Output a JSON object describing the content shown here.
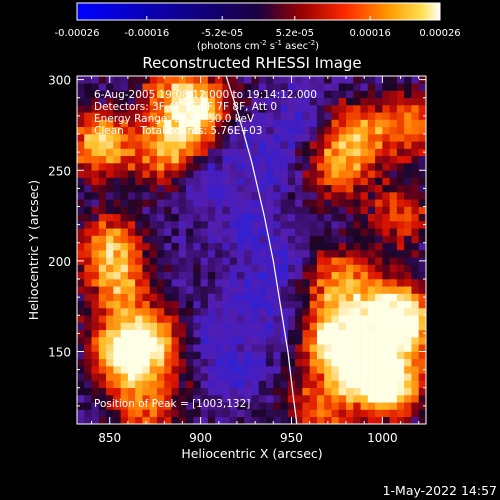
{
  "chart_data": {
    "type": "heatmap",
    "title": "Reconstructed RHESSI Image",
    "xlabel": "Heliocentric X (arcsec)",
    "ylabel": "Heliocentric Y (arcsec)",
    "xlim": [
      832,
      1024
    ],
    "ylim": [
      110,
      302
    ],
    "x_ticks": [
      850,
      900,
      950,
      1000
    ],
    "x_tick_labels": [
      "850",
      "900",
      "950",
      "1000"
    ],
    "y_ticks": [
      150,
      200,
      250,
      300
    ],
    "y_tick_labels": [
      "150",
      "200",
      "250",
      "300"
    ],
    "colormap": "hessi_ct (blue-violet-red-orange-yellow-white)",
    "annotations": [
      "6-Aug-2005 19:08:12.000 to 19:14:12.000",
      "Detectors: 3F 4F 5F 6F 7F 8F, Att 0",
      "Energy Range: 25.0 - 50.0 keV",
      "Clean     Total counts: 5.76E+03"
    ],
    "peak_label": "Position of Peak = [1003,132]",
    "peak_position": [
      1003,
      132
    ],
    "limb_curve": [
      [
        914,
        302
      ],
      [
        921,
        280
      ],
      [
        928,
        255
      ],
      [
        935,
        225
      ],
      [
        940,
        200
      ],
      [
        944,
        175
      ],
      [
        948,
        150
      ],
      [
        951,
        125
      ],
      [
        953,
        110
      ]
    ],
    "grid": false,
    "colorbar": {
      "min": -0.00026,
      "max": 0.00026,
      "tick_values": [
        -0.00026,
        -0.00016,
        -5.2e-05,
        5.2e-05,
        0.00016,
        0.00026
      ],
      "tick_labels": [
        "-0.00026",
        "-0.00016",
        "-5.2e-05",
        "5.2e-05",
        "0.00016",
        "0.00026"
      ],
      "units_label": "(photons cm",
      "units_sup1": "-2",
      "units_mid": " s",
      "units_sup2": "-1",
      "units_mid2": " asec",
      "units_sup3": "-2",
      "units_end": ")"
    },
    "hot_regions": [
      {
        "x": 845,
        "y": 265,
        "intensity": 0.75
      },
      {
        "x": 850,
        "y": 208,
        "intensity": 0.65
      },
      {
        "x": 855,
        "y": 185,
        "intensity": 0.5
      },
      {
        "x": 858,
        "y": 150,
        "intensity": 0.9
      },
      {
        "x": 875,
        "y": 155,
        "intensity": 0.55
      },
      {
        "x": 870,
        "y": 120,
        "intensity": 0.55
      },
      {
        "x": 885,
        "y": 295,
        "intensity": 0.5
      },
      {
        "x": 880,
        "y": 260,
        "intensity": 0.55
      },
      {
        "x": 895,
        "y": 275,
        "intensity": 0.45
      },
      {
        "x": 905,
        "y": 285,
        "intensity": 0.4
      },
      {
        "x": 975,
        "y": 250,
        "intensity": 0.5
      },
      {
        "x": 985,
        "y": 270,
        "intensity": 0.55
      },
      {
        "x": 1015,
        "y": 275,
        "intensity": 0.55
      },
      {
        "x": 1010,
        "y": 225,
        "intensity": 0.45
      },
      {
        "x": 975,
        "y": 190,
        "intensity": 0.55
      },
      {
        "x": 970,
        "y": 160,
        "intensity": 0.7
      },
      {
        "x": 985,
        "y": 145,
        "intensity": 0.85
      },
      {
        "x": 1003,
        "y": 132,
        "intensity": 1.0
      },
      {
        "x": 1015,
        "y": 165,
        "intensity": 0.75
      },
      {
        "x": 1000,
        "y": 175,
        "intensity": 0.6
      },
      {
        "x": 965,
        "y": 118,
        "intensity": 0.5
      }
    ],
    "cold_regions": [
      {
        "x": 920,
        "y": 270
      },
      {
        "x": 905,
        "y": 245
      },
      {
        "x": 925,
        "y": 220
      },
      {
        "x": 940,
        "y": 250
      },
      {
        "x": 955,
        "y": 280
      },
      {
        "x": 930,
        "y": 180
      },
      {
        "x": 905,
        "y": 160
      },
      {
        "x": 950,
        "y": 165
      },
      {
        "x": 920,
        "y": 140
      },
      {
        "x": 945,
        "y": 200
      }
    ]
  },
  "footer": {
    "date_stamp": "1-May-2022 14:57"
  }
}
